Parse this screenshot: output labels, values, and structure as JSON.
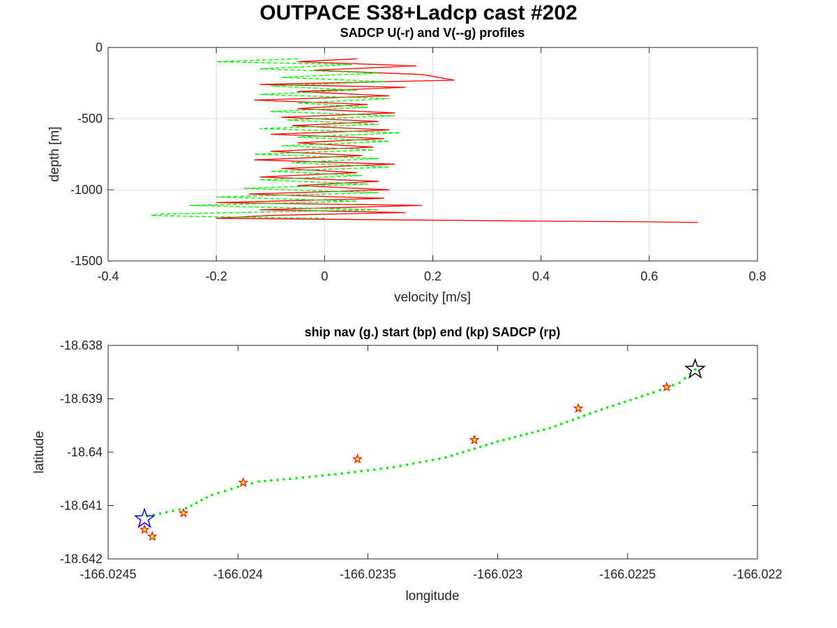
{
  "figure": {
    "title": "OUTPACE S38+Ladcp cast #202"
  },
  "chart_data": [
    {
      "type": "line",
      "title": "SADCP U(-r) and V(--g) profiles",
      "xlabel": "velocity [m/s]",
      "ylabel": "depth [m]",
      "xlim": [
        -0.4,
        0.8
      ],
      "ylim": [
        -1500,
        0
      ],
      "xticks": [
        "-0.4",
        "-0.2",
        "0",
        "0.2",
        "0.4",
        "0.6",
        "0.8"
      ],
      "yticks": [
        "-1500",
        "-1000",
        "-500",
        "0"
      ],
      "grid": true,
      "series": [
        {
          "name": "U",
          "color": "#ff0000",
          "style": "solid",
          "depth": [
            -80,
            -100,
            -130,
            -160,
            -190,
            -230,
            -260,
            -280,
            -310,
            -340,
            -370,
            -400,
            -430,
            -460,
            -490,
            -520,
            -550,
            -580,
            -610,
            -640,
            -670,
            -700,
            -730,
            -760,
            -790,
            -820,
            -850,
            -880,
            -910,
            -940,
            -970,
            -1000,
            -1030,
            -1060,
            -1090,
            -1110,
            -1140,
            -1160,
            -1180,
            -1200,
            -1220,
            -1225,
            -1230
          ],
          "values": [
            0.06,
            -0.05,
            0.17,
            -0.02,
            0.18,
            0.24,
            -0.12,
            0.15,
            -0.05,
            0.12,
            -0.13,
            0.08,
            -0.05,
            0.13,
            -0.08,
            0.1,
            -0.06,
            0.12,
            -0.1,
            0.11,
            -0.05,
            0.09,
            -0.1,
            0.07,
            -0.13,
            0.13,
            -0.08,
            0.06,
            -0.12,
            0.1,
            -0.05,
            0.12,
            -0.14,
            0.11,
            -0.2,
            0.18,
            -0.12,
            0.15,
            -0.1,
            -0.2,
            0.4,
            0.6,
            0.69
          ]
        },
        {
          "name": "V",
          "color": "#00ee00",
          "style": "dashed",
          "depth": [
            -80,
            -100,
            -120,
            -150,
            -180,
            -210,
            -240,
            -270,
            -300,
            -330,
            -360,
            -390,
            -420,
            -450,
            -480,
            -510,
            -540,
            -570,
            -600,
            -630,
            -660,
            -690,
            -720,
            -750,
            -780,
            -810,
            -840,
            -870,
            -900,
            -930,
            -960,
            -990,
            -1020,
            -1050,
            -1080,
            -1110,
            -1140,
            -1170,
            -1180,
            -1190,
            -1200
          ],
          "values": [
            -0.05,
            -0.2,
            0.05,
            -0.12,
            0.1,
            -0.08,
            0.11,
            -0.1,
            0.06,
            -0.12,
            0.12,
            -0.05,
            0.08,
            -0.1,
            0.13,
            -0.07,
            0.1,
            -0.12,
            0.14,
            -0.05,
            0.12,
            -0.08,
            0.09,
            -0.13,
            0.1,
            -0.06,
            0.12,
            -0.1,
            0.07,
            -0.12,
            0.08,
            -0.15,
            0.1,
            -0.2,
            0.06,
            -0.25,
            0.1,
            -0.3,
            -0.32,
            -0.2,
            0.0
          ]
        }
      ]
    },
    {
      "type": "scatter",
      "title": "ship nav (g.) start (bp) end (kp) SADCP (rp)",
      "xlabel": "longitude",
      "ylabel": "latitude",
      "xlim": [
        -166.0245,
        -166.022
      ],
      "ylim": [
        -18.642,
        -18.638
      ],
      "xticks": [
        "-166.0245",
        "-166.024",
        "-166.0235",
        "-166.023",
        "-166.0225",
        "-166.022"
      ],
      "yticks": [
        "-18.642",
        "-18.641",
        "-18.64",
        "-18.639",
        "-18.638"
      ],
      "grid": false,
      "ship_nav": {
        "color": "#00ee00",
        "lon": [
          -166.02435,
          -166.0242,
          -166.0241,
          -166.024,
          -166.02392,
          -166.0238,
          -166.0236,
          -166.0234,
          -166.0232,
          -166.023,
          -166.0228,
          -166.0226,
          -166.0224,
          -166.0223,
          -166.02224
        ],
        "lat": [
          -18.6412,
          -18.64105,
          -18.6408,
          -18.64065,
          -18.64055,
          -18.6405,
          -18.6404,
          -18.64028,
          -18.6401,
          -18.6398,
          -18.63955,
          -18.6392,
          -18.63888,
          -18.6387,
          -18.63845
        ]
      },
      "start": {
        "lon": -166.02436,
        "lat": -18.64125,
        "color": "#0000ff"
      },
      "end": {
        "lon": -166.02224,
        "lat": -18.63845,
        "color": "#000000"
      },
      "sadcp_points": {
        "color": "#ff0000",
        "fill": "#ffff00",
        "lon": [
          -166.02436,
          -166.02433,
          -166.02421,
          -166.02398,
          -166.02354,
          -166.02309,
          -166.02269,
          -166.02235
        ],
        "lat": [
          -18.64145,
          -18.64158,
          -18.64114,
          -18.64057,
          -18.64013,
          -18.63977,
          -18.63918,
          -18.63878
        ]
      }
    }
  ]
}
